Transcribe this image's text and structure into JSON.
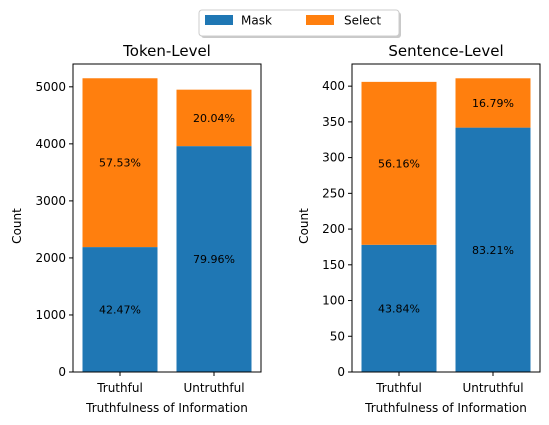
{
  "legend": {
    "items": [
      {
        "label": "Mask",
        "color": "#1f77b4"
      },
      {
        "label": "Select",
        "color": "#ff7f0e"
      }
    ]
  },
  "chart_data": [
    {
      "type": "bar",
      "stacked": true,
      "title": "Token-Level",
      "xlabel": "Truthfulness of Information",
      "ylabel": "Count",
      "categories": [
        "Truthful",
        "Untruthful"
      ],
      "series": [
        {
          "name": "Mask",
          "color": "#1f77b4",
          "values": [
            2190,
            3960
          ],
          "labels": [
            "42.47%",
            "79.96%"
          ]
        },
        {
          "name": "Select",
          "color": "#ff7f0e",
          "values": [
            2960,
            990
          ],
          "labels": [
            "57.53%",
            "20.04%"
          ]
        }
      ],
      "ylim": [
        0,
        5400
      ],
      "yticks": [
        0,
        1000,
        2000,
        3000,
        4000,
        5000
      ],
      "grid": false
    },
    {
      "type": "bar",
      "stacked": true,
      "title": "Sentence-Level",
      "xlabel": "Truthfulness of Information",
      "ylabel": "Count",
      "categories": [
        "Truthful",
        "Untruthful"
      ],
      "series": [
        {
          "name": "Mask",
          "color": "#1f77b4",
          "values": [
            178,
            342
          ],
          "labels": [
            "43.84%",
            "83.21%"
          ]
        },
        {
          "name": "Select",
          "color": "#ff7f0e",
          "values": [
            228,
            69
          ],
          "labels": [
            "56.16%",
            "16.79%"
          ]
        }
      ],
      "ylim": [
        0,
        431
      ],
      "yticks": [
        0,
        50,
        100,
        150,
        200,
        250,
        300,
        350,
        400
      ],
      "grid": false
    }
  ]
}
